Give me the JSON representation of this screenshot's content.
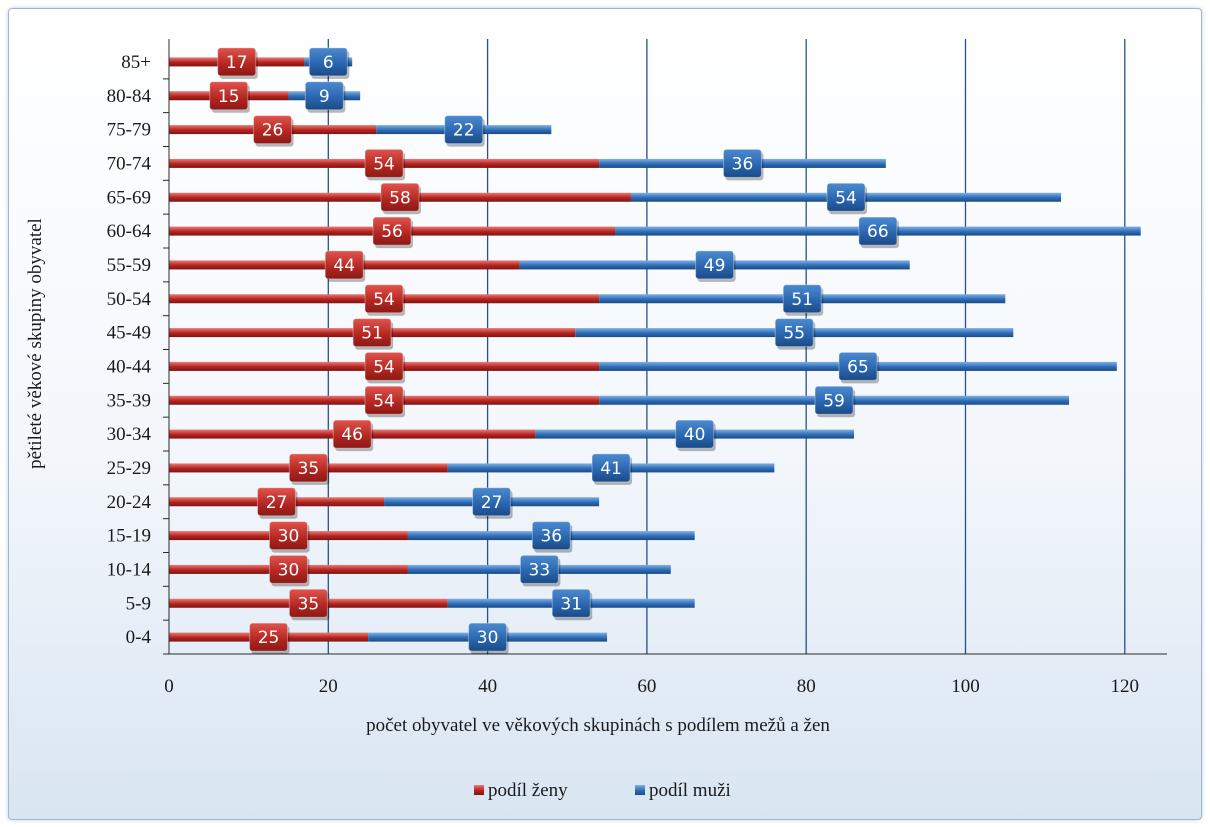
{
  "chart_data": {
    "type": "bar",
    "orientation": "horizontal",
    "stacked": true,
    "categories": [
      "0-4",
      "5-9",
      "10-14",
      "15-19",
      "20-24",
      "25-29",
      "30-34",
      "35-39",
      "40-44",
      "45-49",
      "50-54",
      "55-59",
      "60-64",
      "65-69",
      "70-74",
      "75-79",
      "80-84",
      "85+"
    ],
    "series": [
      {
        "name": "podíl ženy",
        "color": "#c0322e",
        "values": [
          25,
          35,
          30,
          30,
          27,
          35,
          46,
          54,
          54,
          51,
          54,
          44,
          56,
          58,
          54,
          26,
          15,
          17
        ]
      },
      {
        "name": "podíl muži",
        "color": "#2e6db5",
        "values": [
          30,
          31,
          33,
          36,
          27,
          41,
          40,
          59,
          65,
          55,
          51,
          49,
          66,
          54,
          36,
          22,
          9,
          6
        ]
      }
    ],
    "xlabel": "počet obyvatel ve věkových skupinách s podílem mežů a žen",
    "ylabel": "pětileté věkové skupiny obyvatel",
    "xlim": [
      0,
      120
    ],
    "xticks": [
      0,
      20,
      40,
      60,
      80,
      100,
      120
    ],
    "grid": "vertical",
    "legend": "bottom",
    "background": "#eef3fa"
  }
}
